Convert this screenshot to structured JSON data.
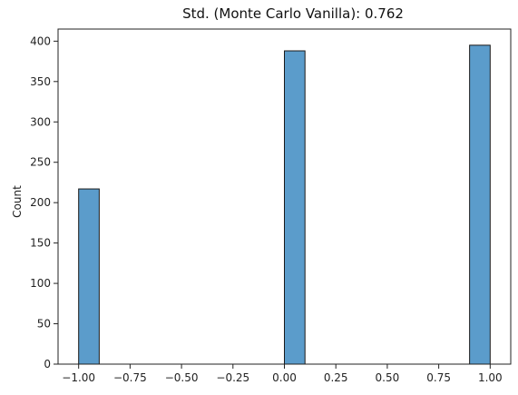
{
  "chart_data": {
    "type": "bar",
    "title": "Std. (Monte Carlo Vanilla): 0.762",
    "xlabel": "",
    "ylabel": "Count",
    "xlim": [
      -1.1,
      1.1
    ],
    "ylim": [
      0,
      415
    ],
    "grid": false,
    "bars": [
      {
        "x0": -1.0,
        "x1": -0.9,
        "count": 217
      },
      {
        "x0": 0.0,
        "x1": 0.1,
        "count": 388
      },
      {
        "x0": 0.9,
        "x1": 1.0,
        "count": 395
      }
    ],
    "x_ticks": [
      {
        "value": -1.0,
        "label": "−1.00"
      },
      {
        "value": -0.75,
        "label": "−0.75"
      },
      {
        "value": -0.5,
        "label": "−0.50"
      },
      {
        "value": -0.25,
        "label": "−0.25"
      },
      {
        "value": 0.0,
        "label": "0.00"
      },
      {
        "value": 0.25,
        "label": "0.25"
      },
      {
        "value": 0.5,
        "label": "0.50"
      },
      {
        "value": 0.75,
        "label": "0.75"
      },
      {
        "value": 1.0,
        "label": "1.00"
      }
    ],
    "y_ticks": [
      {
        "value": 0,
        "label": "0"
      },
      {
        "value": 50,
        "label": "50"
      },
      {
        "value": 100,
        "label": "100"
      },
      {
        "value": 150,
        "label": "150"
      },
      {
        "value": 200,
        "label": "200"
      },
      {
        "value": 250,
        "label": "250"
      },
      {
        "value": 300,
        "label": "300"
      },
      {
        "value": 350,
        "label": "350"
      },
      {
        "value": 400,
        "label": "400"
      }
    ],
    "colors": {
      "bar_fill": "#5b9ccb",
      "bar_edge": "#1a1a1a",
      "axis": "#222222"
    }
  }
}
